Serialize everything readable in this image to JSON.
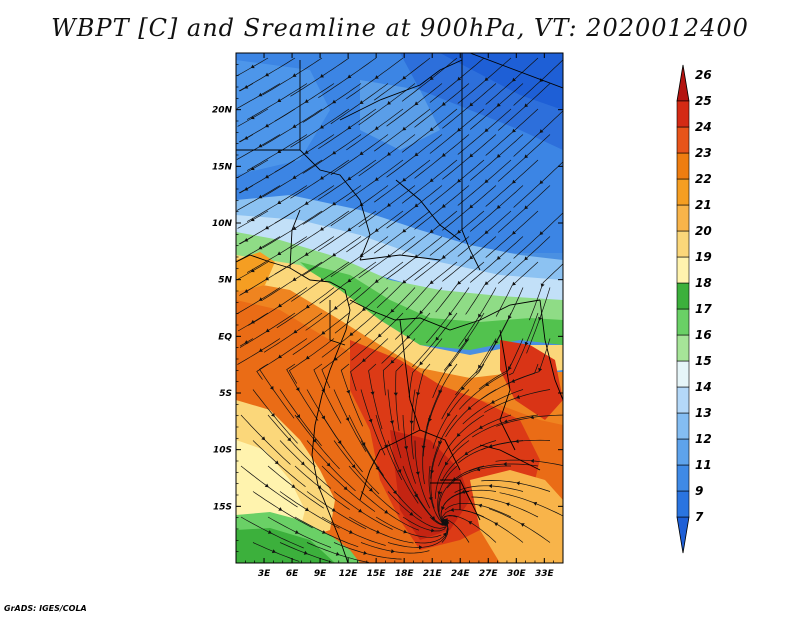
{
  "title": "WBPT [C] and Sreamline at 900hPa, VT: 2020012400",
  "credit": "GrADS: IGES/COLA",
  "map": {
    "lon_range": [
      0,
      35
    ],
    "lat_range": [
      -20,
      25
    ],
    "lat_labels": [
      "20N",
      "15N",
      "10N",
      "5N",
      "EQ",
      "5S",
      "10S",
      "15S"
    ],
    "lat_values": [
      20,
      15,
      10,
      5,
      0,
      -5,
      -10,
      -15
    ],
    "lon_labels": [
      "3E",
      "6E",
      "9E",
      "12E",
      "15E",
      "18E",
      "21E",
      "24E",
      "27E",
      "30E",
      "33E"
    ],
    "lon_values": [
      3,
      6,
      9,
      12,
      15,
      18,
      21,
      24,
      27,
      30,
      33
    ]
  },
  "colorbar": {
    "labels": [
      "7",
      "9",
      "11",
      "12",
      "13",
      "14",
      "15",
      "16",
      "17",
      "18",
      "19",
      "20",
      "21",
      "22",
      "23",
      "24",
      "25",
      "26"
    ],
    "colors": [
      "#1e5fd6",
      "#2a74e0",
      "#3f8ae6",
      "#5ea3ec",
      "#84bdf2",
      "#b4d8f8",
      "#e6f5f8",
      "#a6e498",
      "#6ad066",
      "#3cb03c",
      "#fff3ae",
      "#fbd77a",
      "#f8b44a",
      "#f59e22",
      "#ee7d10",
      "#e8541a",
      "#d42a14",
      "#b41410"
    ]
  }
}
